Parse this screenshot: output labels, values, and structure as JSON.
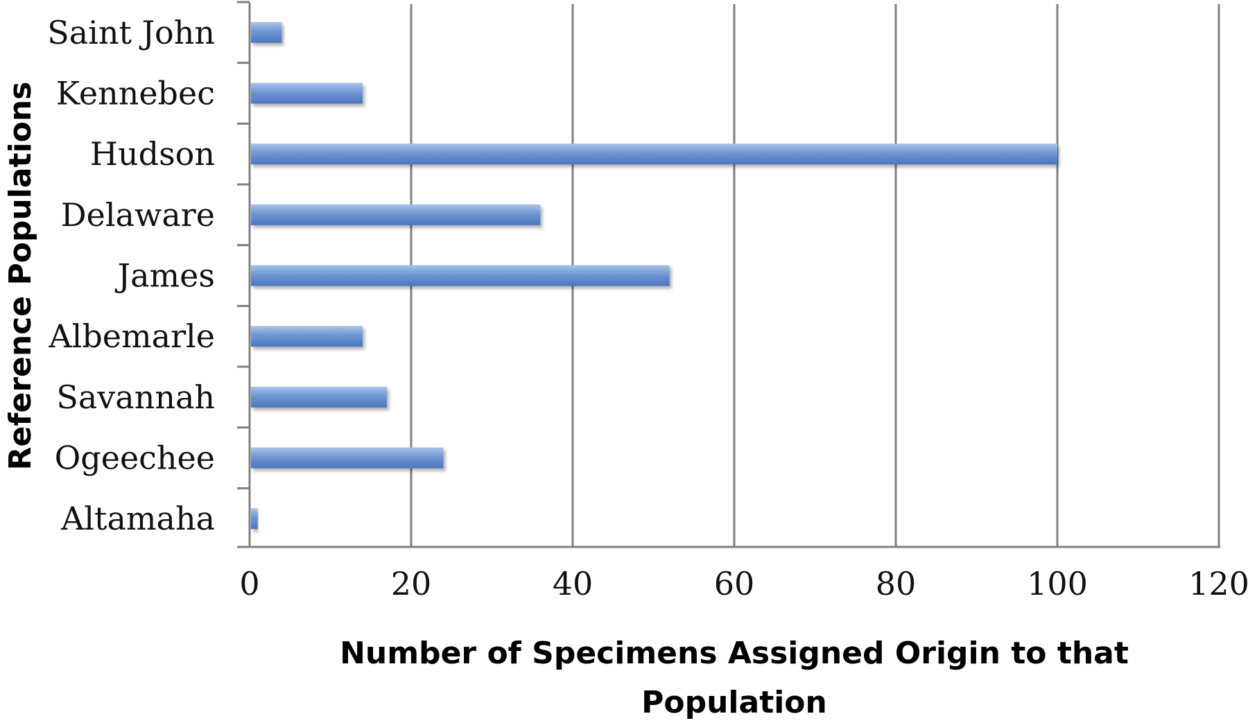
{
  "chart_data": {
    "type": "bar",
    "orientation": "horizontal",
    "categories": [
      "Saint John",
      "Kennebec",
      "Hudson",
      "Delaware",
      "James",
      "Albemarle",
      "Savannah",
      "Ogeechee",
      "Altamaha"
    ],
    "values": [
      4,
      14,
      100,
      36,
      52,
      14,
      17,
      24,
      1
    ],
    "xlabel": "Number of Specimens Assigned Origin to that Population",
    "xlabel_lines": [
      "Number of Specimens Assigned Origin to that",
      "Population"
    ],
    "ylabel": "Reference Populations",
    "xlim": [
      0,
      120
    ],
    "xticks": [
      "0",
      "20",
      "40",
      "60",
      "80",
      "100",
      "120"
    ],
    "grid": "vertical",
    "legend": "none",
    "colors": {
      "bar_top": "#a9c4e8",
      "bar_mid": "#6f97d3",
      "bar_bottom": "#4a76c0",
      "grid": "#7f7f7f"
    }
  }
}
